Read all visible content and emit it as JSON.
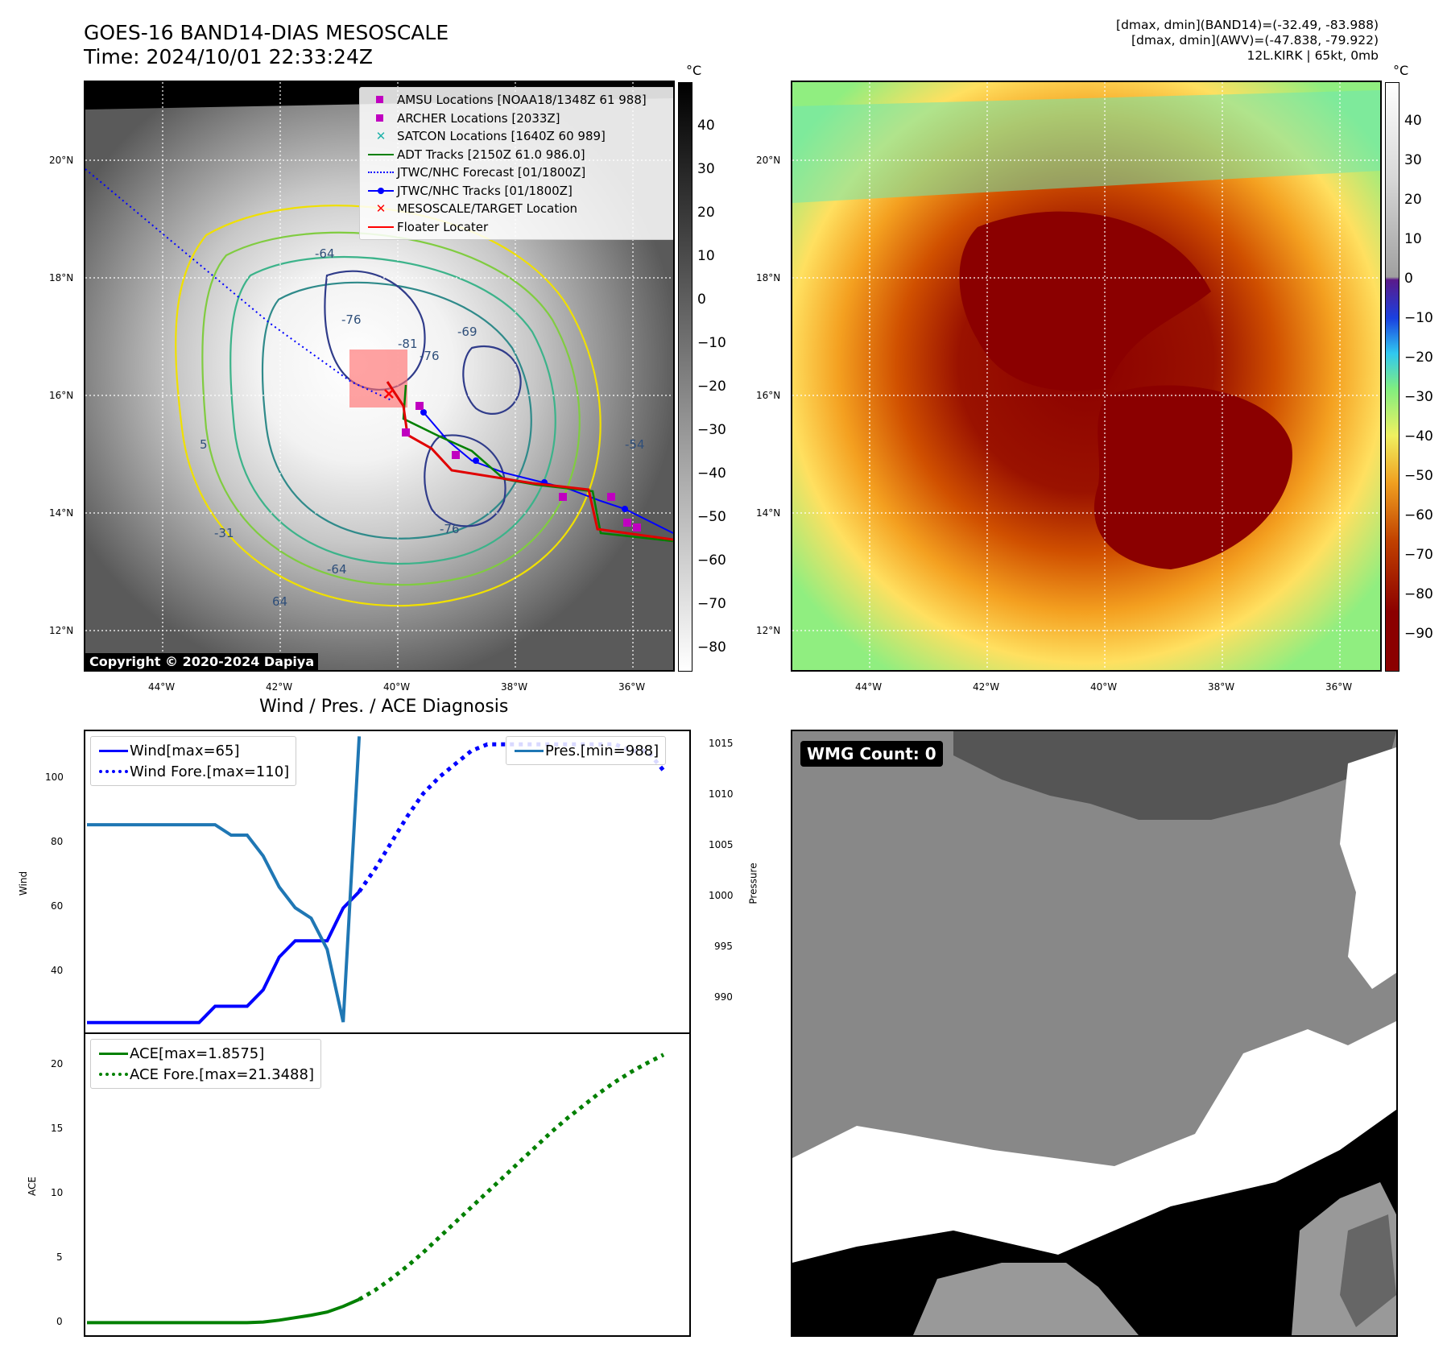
{
  "header": {
    "title_line1": "GOES-16 BAND14-DIAS MESOSCALE",
    "title_line2": "Time: 2024/10/01 22:33:24Z",
    "stats_line1": "[dmax, dmin](BAND14)=(-32.49, -83.988)",
    "stats_line2": "[dmax, dmin](AWV)=(-47.838, -79.922)",
    "stats_line3": "12L.KIRK | 65kt, 0mb"
  },
  "map": {
    "lat_ticks": [
      "20°N",
      "18°N",
      "16°N",
      "14°N",
      "12°N"
    ],
    "lon_ticks": [
      "44°W",
      "42°W",
      "40°W",
      "38°W",
      "36°W"
    ],
    "unit": "°C",
    "gray_colorbar_ticks": [
      "40",
      "30",
      "20",
      "10",
      "0",
      "−10",
      "−20",
      "−30",
      "−40",
      "−50",
      "−60",
      "−70",
      "−80"
    ],
    "color_colorbar_ticks": [
      "40",
      "30",
      "20",
      "10",
      "0",
      "−10",
      "−20",
      "−30",
      "−40",
      "−50",
      "−60",
      "−70",
      "−80",
      "−90"
    ],
    "contour_labels": [
      "-64",
      "-76",
      "-81",
      "-76",
      "-69",
      "-54",
      "-76",
      "-64",
      "-31",
      "64",
      "5"
    ],
    "copyright": "Copyright © 2020-2024 Dapiya",
    "legend": [
      {
        "label": "AMSU Locations [NOAA18/1348Z 61 988]",
        "symbol": "square",
        "color": "#c000c0"
      },
      {
        "label": "ARCHER Locations [2033Z]",
        "symbol": "square",
        "color": "#c000c0"
      },
      {
        "label": "SATCON Locations [1640Z 60 989]",
        "symbol": "x",
        "color": "#20b2aa"
      },
      {
        "label": "ADT Tracks [2150Z 61.0 986.0]",
        "symbol": "line",
        "color": "#008000"
      },
      {
        "label": "JTWC/NHC Forecast [01/1800Z]",
        "symbol": "dotted",
        "color": "#0000ff"
      },
      {
        "label": "JTWC/NHC Tracks [01/1800Z]",
        "symbol": "line-dot",
        "color": "#0000ff"
      },
      {
        "label": "MESOSCALE/TARGET Location",
        "symbol": "x",
        "color": "#ff0000"
      },
      {
        "label": "Floater Locater",
        "symbol": "line",
        "color": "#ff0000"
      }
    ]
  },
  "diagnosis": {
    "title": "Wind / Pres. / ACE Diagnosis",
    "wind_ylabel": "Wind",
    "pres_ylabel": "Pressure",
    "ace_ylabel": "ACE",
    "wind_ticks": [
      "100",
      "80",
      "60",
      "40"
    ],
    "pres_ticks": [
      "1015",
      "1010",
      "1005",
      "1000",
      "995",
      "990"
    ],
    "ace_ticks": [
      "20",
      "15",
      "10",
      "5",
      "0"
    ],
    "legend_wind": "Wind[max=65]",
    "legend_wind_fore": "Wind Fore.[max=110]",
    "legend_pres": "Pres.[min=988]",
    "legend_ace": "ACE[max=1.8575]",
    "legend_ace_fore": "ACE Fore.[max=21.3488]"
  },
  "wmg": {
    "label": "WMG Count: 0"
  },
  "chart_data": [
    {
      "type": "line",
      "title": "Wind / Pres. / ACE Diagnosis",
      "ylabel": "Wind",
      "ylim": [
        22,
        114
      ],
      "series": [
        {
          "name": "Wind[max=65]",
          "style": "solid",
          "color": "#0000ff",
          "x": [
            0,
            1,
            2,
            3,
            4,
            5,
            6,
            7,
            8,
            9,
            10,
            11,
            12,
            13,
            14,
            15,
            16,
            17
          ],
          "values": [
            25,
            25,
            25,
            25,
            25,
            25,
            25,
            25,
            30,
            30,
            30,
            35,
            45,
            50,
            50,
            50,
            60,
            65
          ]
        },
        {
          "name": "Wind Fore.[max=110]",
          "style": "dotted",
          "color": "#0000ff",
          "x": [
            17,
            18,
            19,
            20,
            21,
            22,
            23,
            24,
            25,
            26,
            27,
            28,
            29,
            30,
            31,
            32,
            33,
            34,
            35,
            36
          ],
          "values": [
            65,
            72,
            80,
            88,
            95,
            100,
            104,
            108,
            110,
            110,
            110,
            110,
            110,
            110,
            110,
            110,
            110,
            108,
            108,
            102
          ]
        }
      ]
    },
    {
      "type": "line",
      "ylabel": "Pressure",
      "ylim": [
        987,
        1016
      ],
      "series": [
        {
          "name": "Pres.[min=988]",
          "style": "solid",
          "color": "#1f77b4",
          "x": [
            0,
            1,
            2,
            3,
            4,
            5,
            6,
            7,
            8,
            9,
            10,
            11,
            12,
            13,
            14,
            15,
            16,
            17
          ],
          "values": [
            1007,
            1007,
            1007,
            1007,
            1007,
            1007,
            1007,
            1007,
            1007,
            1006,
            1006,
            1004,
            1001,
            999,
            998,
            995,
            988,
            1015.5
          ]
        }
      ]
    },
    {
      "type": "line",
      "ylabel": "ACE",
      "ylim": [
        -1,
        23
      ],
      "series": [
        {
          "name": "ACE[max=1.8575]",
          "style": "solid",
          "color": "#008000",
          "x": [
            0,
            2,
            4,
            6,
            8,
            9,
            10,
            11,
            12,
            13,
            14,
            15,
            16,
            17
          ],
          "values": [
            0,
            0,
            0,
            0,
            0,
            0,
            0,
            0.05,
            0.2,
            0.4,
            0.6,
            0.85,
            1.3,
            1.8575
          ]
        },
        {
          "name": "ACE Fore.[max=21.3488]",
          "style": "dotted",
          "color": "#008000",
          "x": [
            17,
            18,
            19,
            20,
            21,
            22,
            23,
            24,
            25,
            26,
            27,
            28,
            29,
            30,
            31,
            32,
            33,
            34,
            35,
            36
          ],
          "values": [
            1.8575,
            2.6,
            3.5,
            4.5,
            5.6,
            6.8,
            8.0,
            9.2,
            10.4,
            11.6,
            12.8,
            14.0,
            15.2,
            16.3,
            17.3,
            18.3,
            19.2,
            20.0,
            20.7,
            21.3488
          ]
        }
      ]
    }
  ]
}
